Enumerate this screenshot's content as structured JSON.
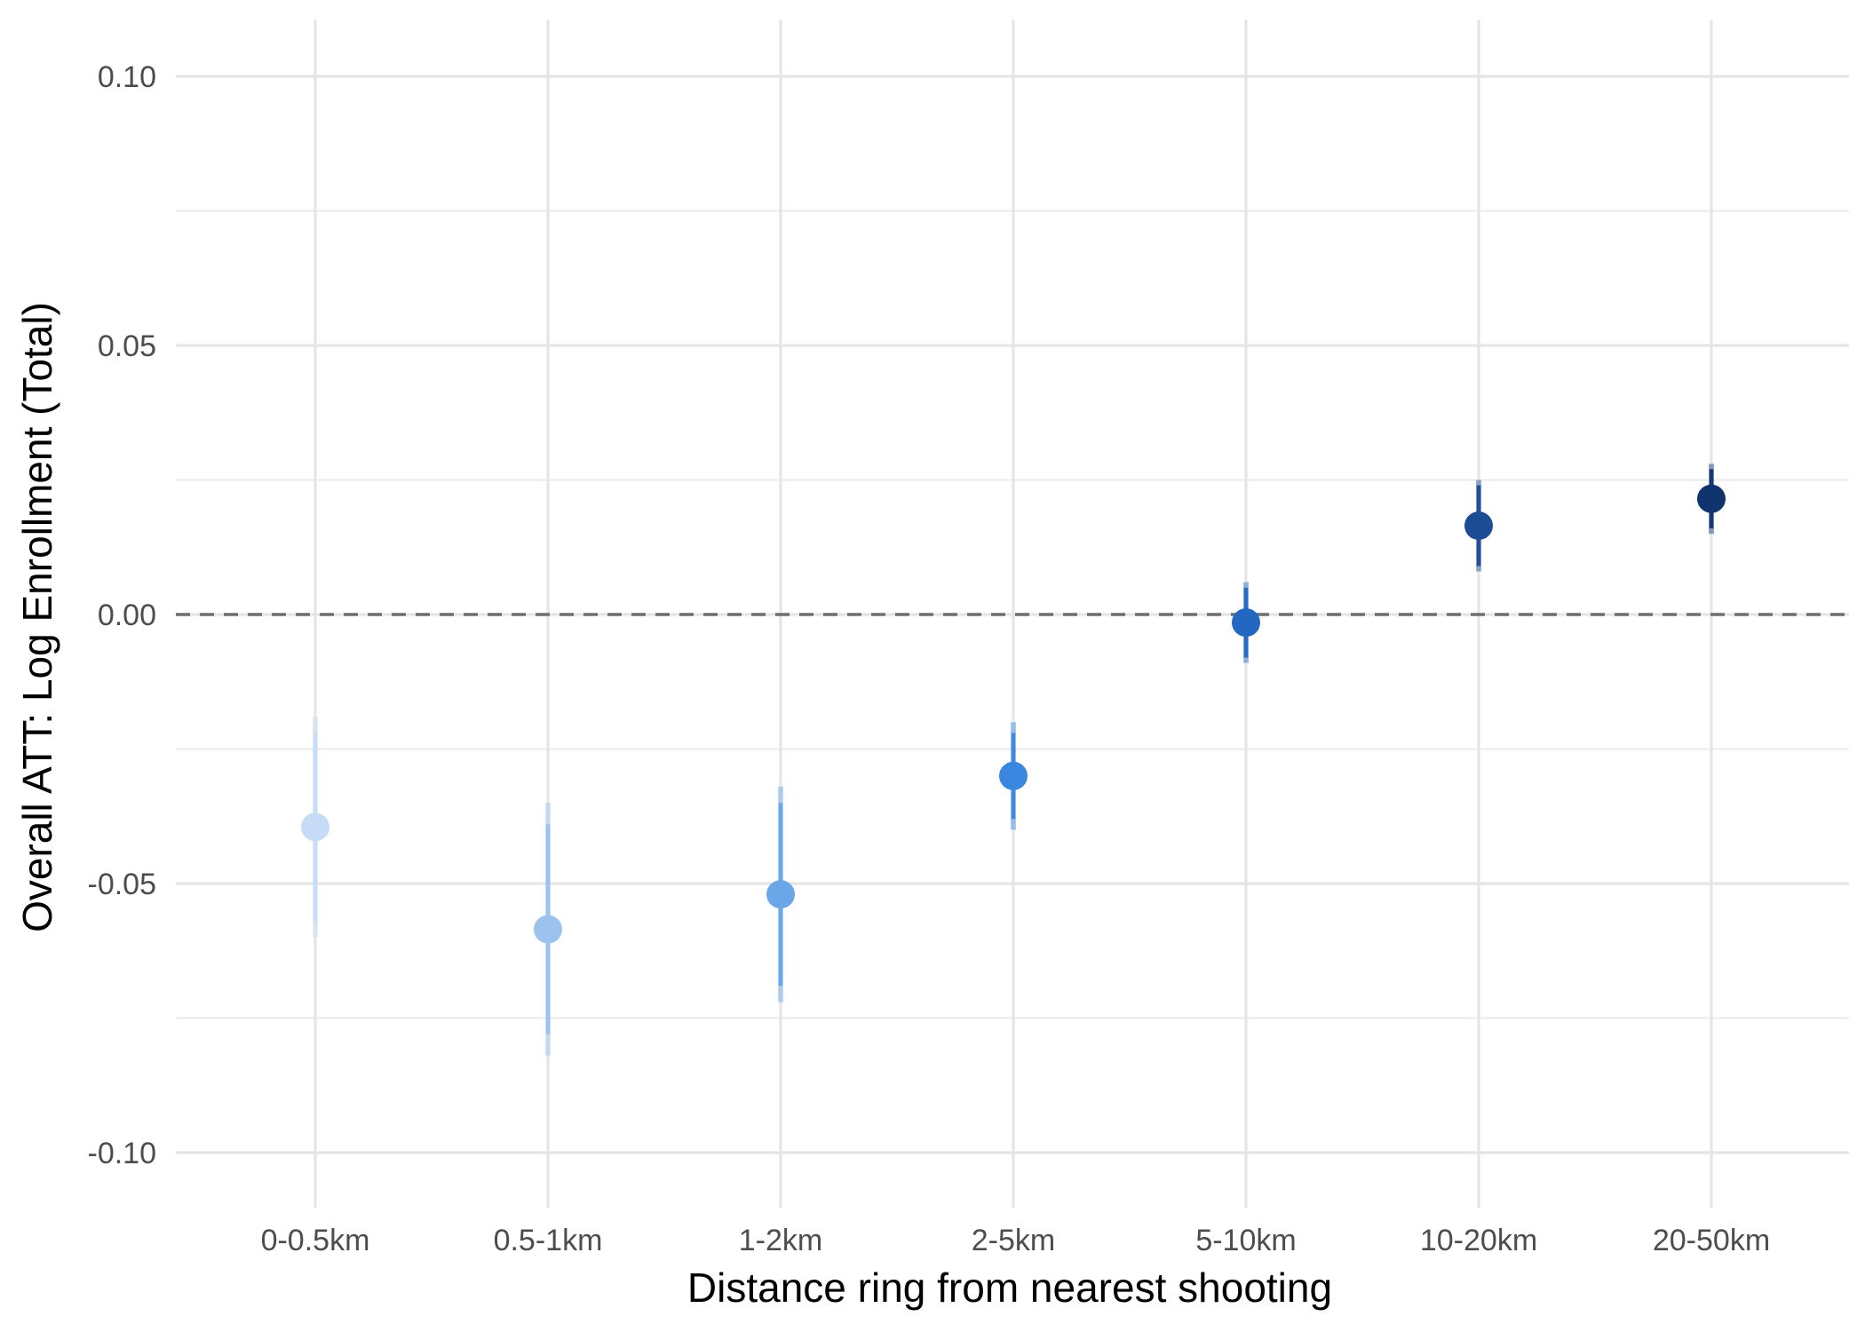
{
  "chart_data": {
    "type": "scatter",
    "subtype": "point-range",
    "title": "",
    "xlabel": "Distance ring from nearest shooting",
    "ylabel": "Overall ATT: Log Enrollment (Total)",
    "categories": [
      "0-0.5km",
      "0.5-1km",
      "1-2km",
      "2-5km",
      "5-10km",
      "10-20km",
      "20-50km"
    ],
    "ylim": [
      -0.105,
      0.11
    ],
    "y_ticks": [
      {
        "value": 0.1,
        "label": "0.10"
      },
      {
        "value": 0.05,
        "label": "0.05"
      },
      {
        "value": 0.0,
        "label": "0.00"
      },
      {
        "value": -0.05,
        "label": "-0.05"
      },
      {
        "value": -0.1,
        "label": "-0.10"
      }
    ],
    "reference_line": {
      "value": 0.0,
      "style": "dashed"
    },
    "grid": true,
    "legend": "none",
    "points": [
      {
        "category": "0-0.5km",
        "estimate": -0.0395,
        "ci95": [
          -0.06,
          -0.019
        ],
        "ci90": [
          -0.057,
          -0.022
        ],
        "color": "#c6dbf5"
      },
      {
        "category": "0.5-1km",
        "estimate": -0.0585,
        "ci95": [
          -0.082,
          -0.035
        ],
        "ci90": [
          -0.078,
          -0.039
        ],
        "color": "#9cc3ee"
      },
      {
        "category": "1-2km",
        "estimate": -0.052,
        "ci95": [
          -0.072,
          -0.032
        ],
        "ci90": [
          -0.069,
          -0.035
        ],
        "color": "#6aa6e8"
      },
      {
        "category": "2-5km",
        "estimate": -0.03,
        "ci95": [
          -0.04,
          -0.02
        ],
        "ci90": [
          -0.038,
          -0.022
        ],
        "color": "#3a87e0"
      },
      {
        "category": "5-10km",
        "estimate": -0.0015,
        "ci95": [
          -0.009,
          0.006
        ],
        "ci90": [
          -0.008,
          0.005
        ],
        "color": "#2467c2"
      },
      {
        "category": "10-20km",
        "estimate": 0.0165,
        "ci95": [
          0.008,
          0.025
        ],
        "ci90": [
          0.009,
          0.024
        ],
        "color": "#1c4c94"
      },
      {
        "category": "20-50km",
        "estimate": 0.0215,
        "ci95": [
          0.015,
          0.028
        ],
        "ci90": [
          0.016,
          0.027
        ],
        "color": "#11346e"
      }
    ]
  }
}
